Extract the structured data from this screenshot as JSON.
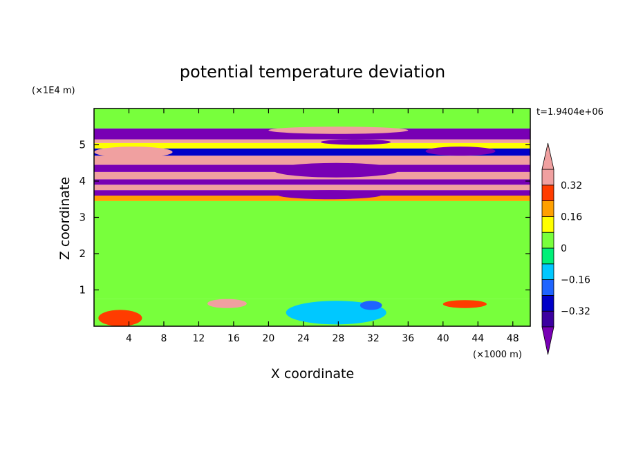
{
  "chart_data": {
    "type": "heatmap",
    "title": "potential temperature deviation",
    "xlabel": "X coordinate",
    "ylabel": "Z coordinate",
    "x_unit": "(×1000 m)",
    "y_unit": "(×1E4 m)",
    "time_label": "t=1.9404e+06",
    "xlim": [
      0,
      50
    ],
    "ylim": [
      0,
      6
    ],
    "x_ticks": [
      4,
      8,
      12,
      16,
      20,
      24,
      28,
      32,
      36,
      40,
      44,
      48
    ],
    "y_ticks": [
      1,
      2,
      3,
      4,
      5
    ],
    "colorbar": {
      "levels": [
        -0.4,
        -0.32,
        -0.24,
        -0.16,
        -0.08,
        0,
        0.08,
        0.16,
        0.24,
        0.32,
        0.4
      ],
      "tick_values": [
        0.32,
        0.16,
        0,
        -0.16,
        -0.32
      ],
      "tick_labels": [
        "0.32",
        "0.16",
        "0",
        "−0.16",
        "−0.32"
      ],
      "colors": [
        "#7800b4",
        "#3c00a0",
        "#0000c8",
        "#1e64ff",
        "#00c8ff",
        "#00f078",
        "#78ff3c",
        "#ffff00",
        "#ffa000",
        "#ff3c00",
        "#f0a0a0"
      ],
      "over_color": "#f0a0a0",
      "under_color": "#7800b4"
    },
    "bands": [
      {
        "z": [
          0.0,
          0.75
        ],
        "value": 0.05
      },
      {
        "z": [
          0.75,
          3.45
        ],
        "value": 0.02
      },
      {
        "z": [
          3.45,
          3.6
        ],
        "value": 0.2
      },
      {
        "z": [
          3.6,
          3.75
        ],
        "value": -0.45
      },
      {
        "z": [
          3.75,
          3.9
        ],
        "value": 0.45
      },
      {
        "z": [
          3.9,
          4.05
        ],
        "value": -0.45
      },
      {
        "z": [
          4.05,
          4.25
        ],
        "value": 0.45
      },
      {
        "z": [
          4.25,
          4.45
        ],
        "value": -0.45
      },
      {
        "z": [
          4.45,
          4.7
        ],
        "value": 0.45
      },
      {
        "z": [
          4.7,
          4.9
        ],
        "value": -0.3
      },
      {
        "z": [
          4.9,
          5.05
        ],
        "value": 0.15
      },
      {
        "z": [
          5.05,
          5.15
        ],
        "value": 0.45
      },
      {
        "z": [
          5.15,
          5.45
        ],
        "value": -0.45
      },
      {
        "z": [
          5.45,
          6.0
        ],
        "value": 0.05
      }
    ],
    "features": [
      {
        "x": [
          0.5,
          5.5
        ],
        "z": [
          0.0,
          0.45
        ],
        "value": 0.3
      },
      {
        "x": [
          13.0,
          17.5
        ],
        "z": [
          0.5,
          0.75
        ],
        "value": 0.45
      },
      {
        "x": [
          40.0,
          45.0
        ],
        "z": [
          0.5,
          0.72
        ],
        "value": 0.3
      },
      {
        "x": [
          22.0,
          33.5
        ],
        "z": [
          0.05,
          0.7
        ],
        "value": -0.1
      },
      {
        "x": [
          30.5,
          33.0
        ],
        "z": [
          0.45,
          0.7
        ],
        "value": -0.2
      },
      {
        "x": [
          26.0,
          34.0
        ],
        "z": [
          5.0,
          5.15
        ],
        "value": -0.45
      },
      {
        "x": [
          20.5,
          35.0
        ],
        "z": [
          4.1,
          4.5
        ],
        "value": -0.45
      },
      {
        "x": [
          38.0,
          46.0
        ],
        "z": [
          4.7,
          4.95
        ],
        "value": -0.45
      },
      {
        "x": [
          20.0,
          36.0
        ],
        "z": [
          5.3,
          5.5
        ],
        "value": 0.45
      },
      {
        "x": [
          0.0,
          9.0
        ],
        "z": [
          4.65,
          4.95
        ],
        "value": 0.45
      },
      {
        "x": [
          21.0,
          33.0
        ],
        "z": [
          3.5,
          3.75
        ],
        "value": -0.45
      }
    ]
  }
}
